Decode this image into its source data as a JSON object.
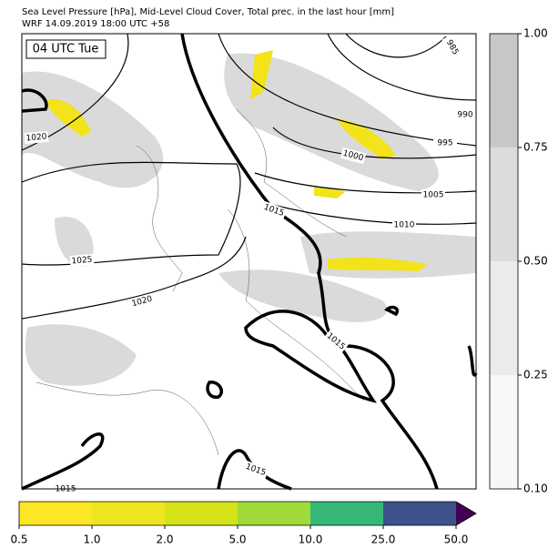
{
  "header": {
    "title": "Sea Level Pressure [hPa], Mid-Level Cloud Cover, Total prec. in the last hour [mm]",
    "subtitle": "WRF 14.09.2019 18:00 UTC +58"
  },
  "map": {
    "time_label": "04 UTC Tue",
    "isobar_labels": [
      985,
      990,
      995,
      1000,
      1005,
      1010,
      1015,
      1020,
      1025,
      1020,
      1015,
      1015,
      1015
    ]
  },
  "cloud_colorbar": {
    "ticks": [
      {
        "value": 0.1,
        "label": "0.10"
      },
      {
        "value": 0.25,
        "label": "0.25"
      },
      {
        "value": 0.5,
        "label": "0.50"
      },
      {
        "value": 0.75,
        "label": "0.75"
      },
      {
        "value": 1.0,
        "label": "1.00"
      }
    ],
    "colors": [
      "#f7f7f7",
      "#ebebeb",
      "#dcdcdc",
      "#c8c8c8"
    ]
  },
  "precip_colorbar": {
    "ticks": [
      {
        "value": 0.5,
        "label": "0.5"
      },
      {
        "value": 1.0,
        "label": "1.0"
      },
      {
        "value": 2.0,
        "label": "2.0"
      },
      {
        "value": 5.0,
        "label": "5.0"
      },
      {
        "value": 10.0,
        "label": "10.0"
      },
      {
        "value": 25.0,
        "label": "25.0"
      },
      {
        "value": 50.0,
        "label": "50.0"
      }
    ],
    "colors": [
      "#fde725",
      "#eee51e",
      "#d4e21a",
      "#a0da39",
      "#35b779",
      "#3b528b"
    ],
    "over_color": "#440154"
  }
}
